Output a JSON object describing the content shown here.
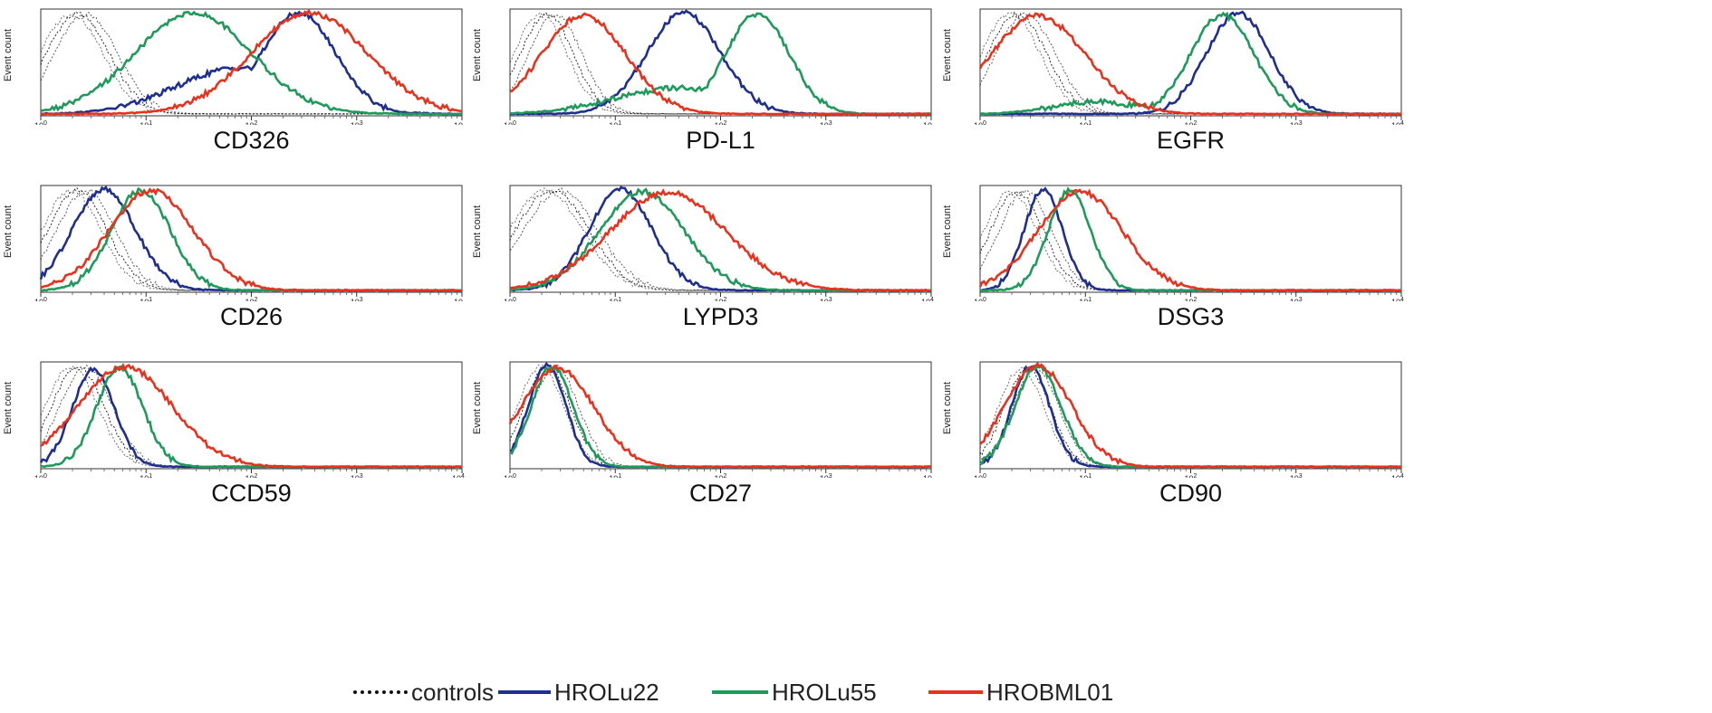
{
  "chart_data": {
    "type": "line",
    "title": "",
    "ylabel": "Event count",
    "xscale": "log",
    "xlim": [
      1,
      10000
    ],
    "x_tick_labels_exp": [
      "0",
      "1",
      "2",
      "3",
      "4"
    ],
    "legend": [
      {
        "name": "controls",
        "color": "#111111",
        "dashed": true
      },
      {
        "name": "HROLu22",
        "color": "#1f2f8f",
        "dashed": false
      },
      {
        "name": "HROLu55",
        "color": "#1e9a5a",
        "dashed": false
      },
      {
        "name": "HROBML01",
        "color": "#e8321e",
        "dashed": false
      }
    ],
    "panels": [
      {
        "marker": "CD326",
        "last_tick_exp": "",
        "series": [
          {
            "name": "controls",
            "peaks": [
              {
                "mu": 0.35,
                "sig": 0.3,
                "h": 0.97
              }
            ]
          },
          {
            "name": "HROLu22",
            "peaks": [
              {
                "mu": 2.45,
                "sig": 0.35,
                "h": 0.98
              },
              {
                "mu": 1.9,
                "sig": 0.6,
                "h": 0.45
              }
            ]
          },
          {
            "name": "HROLu55",
            "peaks": [
              {
                "mu": 1.45,
                "sig": 0.55,
                "h": 0.98
              }
            ]
          },
          {
            "name": "HROBML01",
            "peaks": [
              {
                "mu": 2.55,
                "sig": 0.55,
                "h": 0.98
              }
            ]
          }
        ]
      },
      {
        "marker": "PD-L1",
        "last_tick_exp": "",
        "series": [
          {
            "name": "controls",
            "peaks": [
              {
                "mu": 0.35,
                "sig": 0.25,
                "h": 0.97
              }
            ]
          },
          {
            "name": "HROLu22",
            "peaks": [
              {
                "mu": 1.65,
                "sig": 0.35,
                "h": 0.98
              }
            ]
          },
          {
            "name": "HROLu55",
            "peaks": [
              {
                "mu": 2.35,
                "sig": 0.3,
                "h": 0.97
              },
              {
                "mu": 1.6,
                "sig": 0.6,
                "h": 0.25
              }
            ]
          },
          {
            "name": "HROBML01",
            "peaks": [
              {
                "mu": 0.7,
                "sig": 0.4,
                "h": 0.96
              }
            ]
          }
        ]
      },
      {
        "marker": "EGFR",
        "last_tick_exp": "4",
        "series": [
          {
            "name": "controls",
            "peaks": [
              {
                "mu": 0.35,
                "sig": 0.28,
                "h": 0.97
              }
            ]
          },
          {
            "name": "HROLu22",
            "peaks": [
              {
                "mu": 2.45,
                "sig": 0.3,
                "h": 0.98
              }
            ]
          },
          {
            "name": "HROLu55",
            "peaks": [
              {
                "mu": 2.3,
                "sig": 0.3,
                "h": 0.96
              },
              {
                "mu": 1.1,
                "sig": 0.4,
                "h": 0.12
              }
            ]
          },
          {
            "name": "HROBML01",
            "peaks": [
              {
                "mu": 0.55,
                "sig": 0.45,
                "h": 0.95
              }
            ]
          }
        ]
      },
      {
        "marker": "CD26",
        "last_tick_exp": "",
        "series": [
          {
            "name": "controls",
            "peaks": [
              {
                "mu": 0.35,
                "sig": 0.28,
                "h": 0.97
              }
            ]
          },
          {
            "name": "HROLu22",
            "peaks": [
              {
                "mu": 0.6,
                "sig": 0.3,
                "h": 0.98
              }
            ]
          },
          {
            "name": "HROLu55",
            "peaks": [
              {
                "mu": 0.95,
                "sig": 0.28,
                "h": 0.97
              }
            ]
          },
          {
            "name": "HROBML01",
            "peaks": [
              {
                "mu": 1.05,
                "sig": 0.4,
                "h": 0.97
              }
            ]
          }
        ]
      },
      {
        "marker": "LYPD3",
        "last_tick_exp": "4",
        "series": [
          {
            "name": "controls",
            "peaks": [
              {
                "mu": 0.4,
                "sig": 0.35,
                "h": 0.97
              }
            ]
          },
          {
            "name": "HROLu22",
            "peaks": [
              {
                "mu": 1.05,
                "sig": 0.3,
                "h": 0.98
              }
            ]
          },
          {
            "name": "HROLu55",
            "peaks": [
              {
                "mu": 1.25,
                "sig": 0.4,
                "h": 0.96
              }
            ]
          },
          {
            "name": "HROBML01",
            "peaks": [
              {
                "mu": 1.5,
                "sig": 0.55,
                "h": 0.95
              }
            ]
          }
        ]
      },
      {
        "marker": "DSG3",
        "last_tick_exp": "4",
        "series": [
          {
            "name": "controls",
            "peaks": [
              {
                "mu": 0.35,
                "sig": 0.25,
                "h": 0.96
              }
            ]
          },
          {
            "name": "HROLu22",
            "peaks": [
              {
                "mu": 0.6,
                "sig": 0.18,
                "h": 0.98
              }
            ]
          },
          {
            "name": "HROLu55",
            "peaks": [
              {
                "mu": 0.85,
                "sig": 0.2,
                "h": 0.97
              }
            ]
          },
          {
            "name": "HROBML01",
            "peaks": [
              {
                "mu": 0.95,
                "sig": 0.4,
                "h": 0.96
              }
            ]
          }
        ]
      },
      {
        "marker": "CCD59",
        "last_tick_exp": "4",
        "series": [
          {
            "name": "controls",
            "peaks": [
              {
                "mu": 0.35,
                "sig": 0.25,
                "h": 0.97
              }
            ]
          },
          {
            "name": "HROLu22",
            "peaks": [
              {
                "mu": 0.5,
                "sig": 0.2,
                "h": 0.95
              }
            ]
          },
          {
            "name": "HROLu55",
            "peaks": [
              {
                "mu": 0.75,
                "sig": 0.22,
                "h": 0.96
              }
            ]
          },
          {
            "name": "HROBML01",
            "peaks": [
              {
                "mu": 0.8,
                "sig": 0.45,
                "h": 0.97
              }
            ]
          }
        ]
      },
      {
        "marker": "CD27",
        "last_tick_exp": "",
        "series": [
          {
            "name": "controls",
            "peaks": [
              {
                "mu": 0.35,
                "sig": 0.22,
                "h": 0.97
              }
            ]
          },
          {
            "name": "HROLu22",
            "peaks": [
              {
                "mu": 0.35,
                "sig": 0.18,
                "h": 0.98
              }
            ]
          },
          {
            "name": "HROLu55",
            "peaks": [
              {
                "mu": 0.4,
                "sig": 0.2,
                "h": 0.97
              }
            ]
          },
          {
            "name": "HROBML01",
            "peaks": [
              {
                "mu": 0.45,
                "sig": 0.35,
                "h": 0.96
              }
            ]
          }
        ]
      },
      {
        "marker": "CD90",
        "last_tick_exp": "4",
        "series": [
          {
            "name": "controls",
            "peaks": [
              {
                "mu": 0.45,
                "sig": 0.22,
                "h": 0.95
              }
            ]
          },
          {
            "name": "HROLu22",
            "peaks": [
              {
                "mu": 0.48,
                "sig": 0.18,
                "h": 0.97
              }
            ]
          },
          {
            "name": "HROLu55",
            "peaks": [
              {
                "mu": 0.55,
                "sig": 0.22,
                "h": 0.97
              }
            ]
          },
          {
            "name": "HROBML01",
            "peaks": [
              {
                "mu": 0.55,
                "sig": 0.32,
                "h": 0.98
              }
            ]
          }
        ]
      }
    ]
  },
  "legend_labels": {
    "controls": "controls",
    "s1": "HROLu22",
    "s2": "HROLu55",
    "s3": "HROBML01"
  }
}
